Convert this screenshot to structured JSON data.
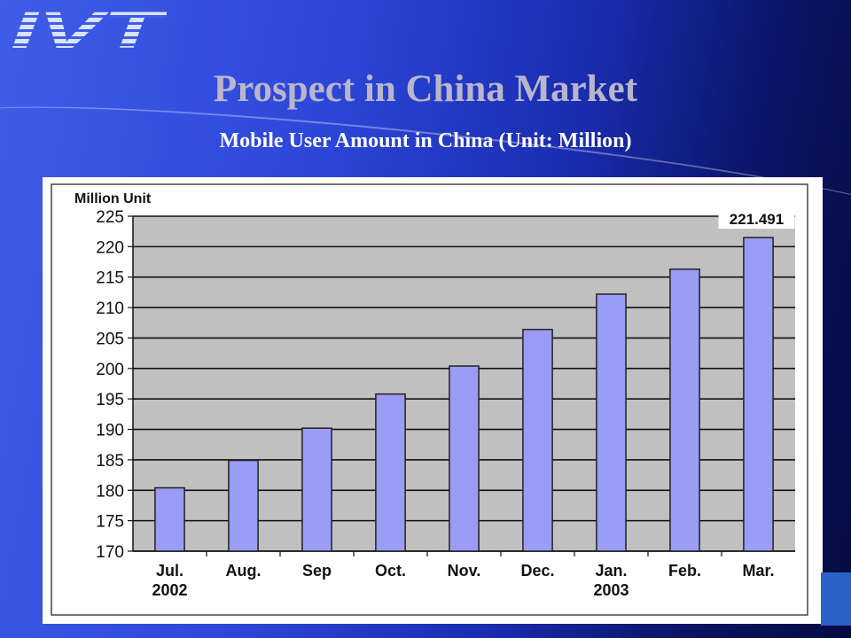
{
  "logo": {
    "text": "IVT"
  },
  "slide": {
    "title": "Prospect in China Market",
    "subtitle": "Mobile User Amount in China (Unit: Million)"
  },
  "colors": {
    "bar_fill": "#9a9cf6",
    "plot_bg": "#c0c0c0",
    "title": "#b9b6cc"
  },
  "chart_data": {
    "type": "bar",
    "ylabel": "Million Unit",
    "categories": [
      [
        "Jul.",
        "2002"
      ],
      [
        "Aug."
      ],
      [
        "Sep"
      ],
      [
        "Oct."
      ],
      [
        "Nov."
      ],
      [
        "Dec."
      ],
      [
        "Jan.",
        "2003"
      ],
      [
        "Feb."
      ],
      [
        "Mar."
      ]
    ],
    "values": [
      180.4,
      184.9,
      190.2,
      195.8,
      200.4,
      206.4,
      212.2,
      216.3,
      221.491
    ],
    "ylim": [
      170,
      225
    ],
    "yticks": [
      170,
      175,
      180,
      185,
      190,
      195,
      200,
      205,
      210,
      215,
      220,
      225
    ],
    "annotation": {
      "category_index": 8,
      "text": "221.491"
    },
    "grid": true
  }
}
